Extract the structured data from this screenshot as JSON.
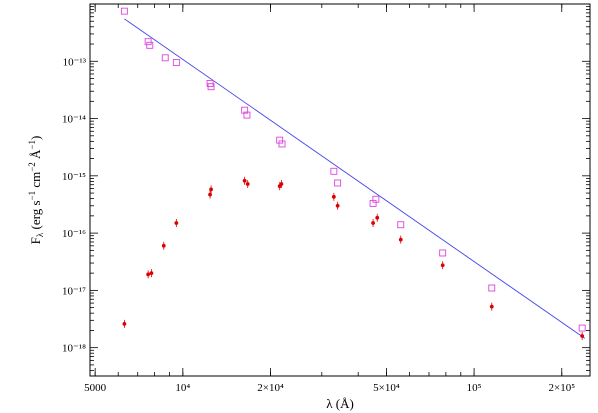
{
  "chart_data": {
    "type": "scatter",
    "title": "",
    "xlabel": "λ (Å)",
    "ylabel_parts": [
      "F",
      "λ",
      " (erg s",
      "−1",
      " cm",
      "−2",
      " Å",
      "−1",
      ")"
    ],
    "x_scale": "log",
    "y_scale": "log",
    "xlim": [
      4800,
      250000
    ],
    "ylim": [
      3.2e-19,
      1e-12
    ],
    "x_ticks": [
      {
        "value": 5000,
        "label": "5000"
      },
      {
        "value": 10000,
        "label": "10⁴"
      },
      {
        "value": 20000,
        "label": "2×10⁴"
      },
      {
        "value": 50000,
        "label": "5×10⁴"
      },
      {
        "value": 100000,
        "label": "10⁵"
      },
      {
        "value": 200000,
        "label": "2×10⁵"
      }
    ],
    "y_ticks": [
      {
        "exp": -18,
        "label": "10⁻¹⁸"
      },
      {
        "exp": -17,
        "label": "10⁻¹⁷"
      },
      {
        "exp": -16,
        "label": "10⁻¹⁶"
      },
      {
        "exp": -15,
        "label": "10⁻¹⁵"
      },
      {
        "exp": -14,
        "label": "10⁻¹⁴"
      },
      {
        "exp": -13,
        "label": "10⁻¹³"
      }
    ],
    "colors": {
      "open_squares": "#dd44dd",
      "filled_dots": "#dd0000",
      "fit_line": "#4444ee"
    },
    "series": [
      {
        "marker": "open-square",
        "x": [
          6300,
          7600,
          7700,
          8700,
          9500,
          12400,
          12500,
          16300,
          16600,
          21500,
          21900,
          33000,
          34000,
          45000,
          46000,
          56000,
          78000,
          115000,
          235000
        ],
        "y": [
          7.5e-13,
          2.2e-13,
          1.9e-13,
          1.15e-13,
          9.5e-14,
          4.1e-14,
          3.6e-14,
          1.4e-14,
          1.15e-14,
          4.2e-15,
          3.6e-15,
          1.2e-15,
          7.5e-16,
          3.3e-16,
          3.9e-16,
          1.4e-16,
          4.5e-17,
          1.1e-17,
          2.2e-18
        ]
      },
      {
        "marker": "filled-dot",
        "x": [
          6300,
          7600,
          7800,
          8600,
          9500,
          12400,
          12500,
          16300,
          16700,
          21500,
          21800,
          33000,
          34000,
          45000,
          46500,
          56000,
          78000,
          115000,
          235000
        ],
        "y": [
          2.6e-18,
          1.9e-17,
          2e-17,
          6e-17,
          1.5e-16,
          4.7e-16,
          5.8e-16,
          8.2e-16,
          7.2e-16,
          6.6e-16,
          7.2e-16,
          4.3e-16,
          3e-16,
          1.5e-16,
          1.85e-16,
          7.7e-17,
          2.75e-17,
          5.2e-18,
          1.6e-18
        ]
      },
      {
        "marker": "line",
        "x": [
          6300,
          240000
        ],
        "y": [
          5.5e-13,
          1.45e-18
        ]
      }
    ]
  }
}
